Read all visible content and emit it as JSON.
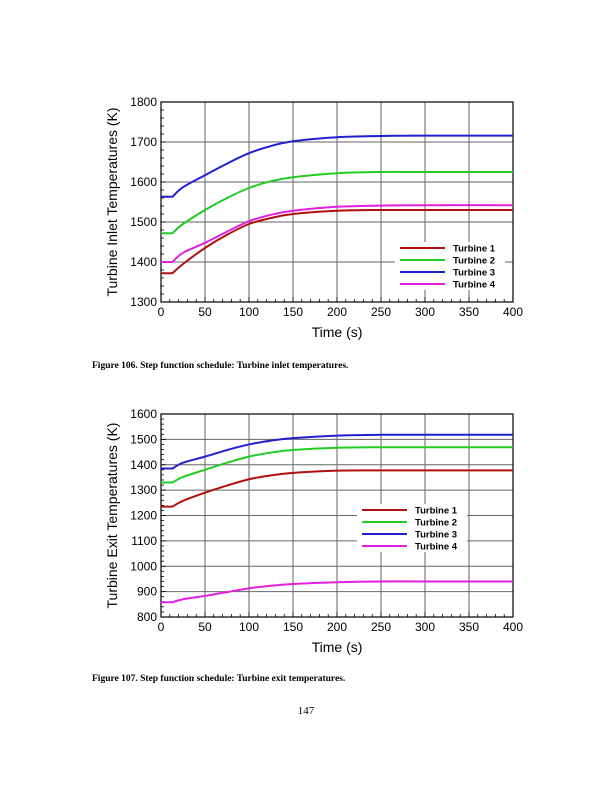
{
  "chart_data": [
    {
      "type": "line",
      "xlabel": "Time (s)",
      "ylabel": "Turbine Inlet Temperatures (K)",
      "xlim": [
        0,
        400
      ],
      "ylim": [
        1300,
        1800
      ],
      "xticks": [
        "0",
        "50",
        "100",
        "150",
        "200",
        "250",
        "300",
        "350",
        "400"
      ],
      "yticks": [
        "1300",
        "1400",
        "1500",
        "1600",
        "1700",
        "1800"
      ],
      "grid": true,
      "legend_position": "bottom-right",
      "x": [
        0,
        13,
        25,
        50,
        75,
        100,
        125,
        150,
        200,
        250,
        300,
        400
      ],
      "series": [
        {
          "name": "Turbine 1",
          "color": "#b01010",
          "values": [
            1372,
            1372,
            1395,
            1435,
            1468,
            1495,
            1510,
            1520,
            1528,
            1530,
            1530,
            1530
          ]
        },
        {
          "name": "Turbine 2",
          "color": "#22cc22",
          "values": [
            1472,
            1472,
            1495,
            1530,
            1560,
            1585,
            1602,
            1612,
            1622,
            1625,
            1625,
            1625
          ]
        },
        {
          "name": "Turbine 3",
          "color": "#2020d0",
          "values": [
            1563,
            1563,
            1587,
            1617,
            1646,
            1672,
            1690,
            1702,
            1712,
            1715,
            1716,
            1716
          ]
        },
        {
          "name": "Turbine 4",
          "color": "#e020e0",
          "values": [
            1400,
            1400,
            1423,
            1448,
            1476,
            1502,
            1518,
            1528,
            1538,
            1541,
            1542,
            1542
          ]
        }
      ]
    },
    {
      "type": "line",
      "xlabel": "Time (s)",
      "ylabel": "Turbine Exit Temperatures (K)",
      "xlim": [
        0,
        400
      ],
      "ylim": [
        800,
        1600
      ],
      "xticks": [
        "0",
        "50",
        "100",
        "150",
        "200",
        "250",
        "300",
        "350",
        "400"
      ],
      "yticks": [
        "800",
        "900",
        "1000",
        "1100",
        "1200",
        "1300",
        "1400",
        "1500",
        "1600"
      ],
      "grid": true,
      "legend_position": "center-right",
      "x": [
        0,
        13,
        25,
        50,
        75,
        100,
        125,
        150,
        200,
        250,
        300,
        400
      ],
      "series": [
        {
          "name": "Turbine 1",
          "color": "#b01010",
          "values": [
            1235,
            1235,
            1258,
            1290,
            1318,
            1343,
            1358,
            1368,
            1377,
            1378,
            1378,
            1378
          ]
        },
        {
          "name": "Turbine 2",
          "color": "#22cc22",
          "values": [
            1330,
            1330,
            1352,
            1380,
            1408,
            1432,
            1448,
            1458,
            1467,
            1469,
            1469,
            1469
          ]
        },
        {
          "name": "Turbine 3",
          "color": "#2020d0",
          "values": [
            1385,
            1385,
            1408,
            1432,
            1458,
            1480,
            1495,
            1505,
            1515,
            1518,
            1518,
            1518
          ]
        },
        {
          "name": "Turbine 4",
          "color": "#e020e0",
          "values": [
            858,
            858,
            870,
            883,
            898,
            913,
            923,
            930,
            937,
            940,
            940,
            940
          ]
        }
      ]
    }
  ],
  "captions": [
    "Figure 106. Step function schedule: Turbine inlet temperatures.",
    "Figure 107. Step function schedule: Turbine exit temperatures."
  ],
  "page_number": "147"
}
